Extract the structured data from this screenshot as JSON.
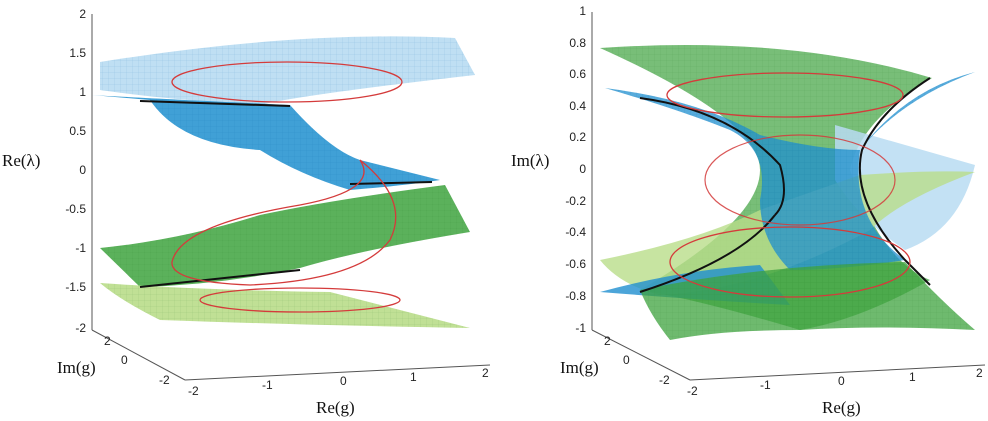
{
  "colors": {
    "blue_dark": "#1f8fcf",
    "blue_light": "#b8dcf2",
    "green_dark": "#3ea33e",
    "green_light": "#b9dd8a",
    "loop": "#d43b3b",
    "edge": "#111111",
    "axis": "#555555"
  },
  "chart_data": [
    {
      "type": "surface3d",
      "zlabel": "Re(λ)",
      "xlabel": "Re(g)",
      "ylabel": "Im(g)",
      "zlim": [
        -2,
        2
      ],
      "xlim": [
        -2,
        2
      ],
      "ylim": [
        -2,
        2
      ],
      "ztick_labels": [
        "-2",
        "-1.5",
        "-1",
        "-0.5",
        "0",
        "0.5",
        "1",
        "1.5",
        "2"
      ],
      "xtick_labels": [
        "-2",
        "-1",
        "0",
        "1",
        "2"
      ],
      "ytick_labels": [
        "-2",
        "0",
        "2"
      ],
      "grid": false
    },
    {
      "type": "surface3d",
      "zlabel": "Im(λ)",
      "xlabel": "Re(g)",
      "ylabel": "Im(g)",
      "zlim": [
        -1,
        1
      ],
      "xlim": [
        -2,
        2
      ],
      "ylim": [
        -2,
        2
      ],
      "ztick_labels": [
        "-1",
        "-0.8",
        "-0.6",
        "-0.4",
        "-0.2",
        "0",
        "0.2",
        "0.4",
        "0.6",
        "0.8",
        "1"
      ],
      "xtick_labels": [
        "-2",
        "-1",
        "0",
        "1",
        "2"
      ],
      "ytick_labels": [
        "-2",
        "0",
        "2"
      ],
      "grid": false
    }
  ]
}
